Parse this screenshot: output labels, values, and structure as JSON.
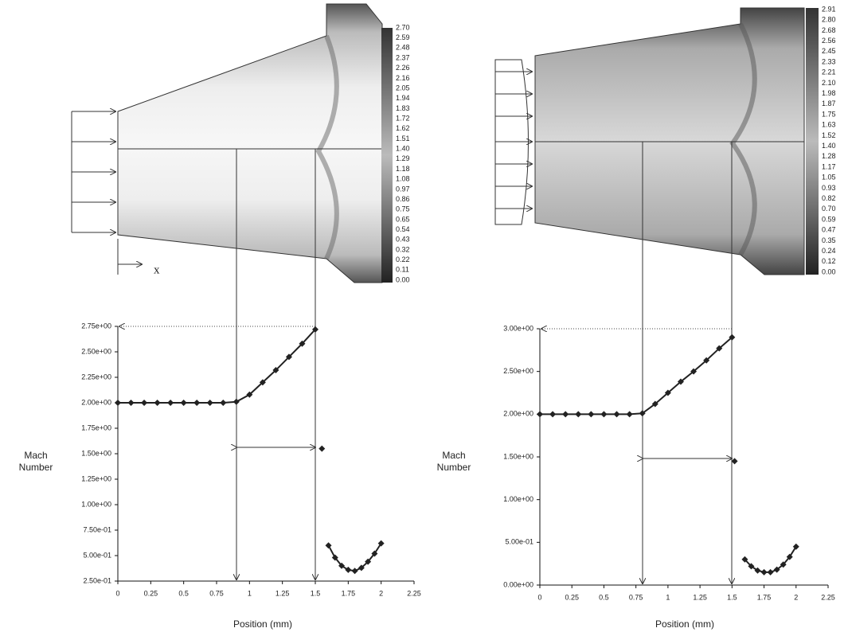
{
  "chart_data": [
    {
      "type": "line",
      "xlabel": "Position (mm)",
      "ylabel": "Mach Number",
      "xlim": [
        0,
        2.25
      ],
      "ylim": [
        0.25,
        2.75
      ],
      "xticks": [
        0,
        0.25,
        0.5,
        0.75,
        1,
        1.25,
        1.5,
        1.75,
        2,
        2.25
      ],
      "yticks": [
        {
          "value": 0.25,
          "label": "2.50e-01"
        },
        {
          "value": 0.5,
          "label": "5.00e-01"
        },
        {
          "value": 0.75,
          "label": "7.50e-01"
        },
        {
          "value": 1,
          "label": "1.00e+00"
        },
        {
          "value": 1.25,
          "label": "1.25e+00"
        },
        {
          "value": 1.5,
          "label": "1.50e+00"
        },
        {
          "value": 1.75,
          "label": "1.75e+00"
        },
        {
          "value": 2,
          "label": "2.00e+00"
        },
        {
          "value": 2.25,
          "label": "2.25e+00"
        },
        {
          "value": 2.5,
          "label": "2.50e+00"
        },
        {
          "value": 2.75,
          "label": "2.75e+00"
        }
      ],
      "series": [
        {
          "color": "#222",
          "x": [
            0,
            0.1,
            0.2,
            0.3,
            0.4,
            0.5,
            0.6,
            0.7,
            0.8,
            0.9,
            1.0,
            1.1,
            1.2,
            1.3,
            1.4,
            1.5
          ],
          "values": [
            2,
            2,
            2,
            2,
            2,
            2,
            2,
            2,
            2,
            2.01,
            2.08,
            2.2,
            2.32,
            2.45,
            2.58,
            2.72
          ]
        },
        {
          "color": "#222",
          "x": [
            1.55
          ],
          "values": [
            1.55
          ]
        },
        {
          "color": "#222",
          "x": [
            1.6,
            1.65,
            1.7,
            1.75,
            1.8,
            1.85,
            1.9,
            1.95,
            2.0
          ],
          "values": [
            0.6,
            0.48,
            0.4,
            0.36,
            0.35,
            0.38,
            0.44,
            0.52,
            0.62
          ]
        }
      ]
    },
    {
      "type": "line",
      "xlabel": "Position (mm)",
      "ylabel": "Mach Number",
      "xlim": [
        0,
        2.25
      ],
      "ylim": [
        0,
        3
      ],
      "xticks": [
        0,
        0.25,
        0.5,
        0.75,
        1,
        1.25,
        1.5,
        1.75,
        2,
        2.25
      ],
      "yticks": [
        {
          "value": 0,
          "label": "0.00e+00"
        },
        {
          "value": 0.5,
          "label": "5.00e-01"
        },
        {
          "value": 1,
          "label": "1.00e+00"
        },
        {
          "value": 1.5,
          "label": "1.50e+00"
        },
        {
          "value": 2,
          "label": "2.00e+00"
        },
        {
          "value": 2.5,
          "label": "2.50e+00"
        },
        {
          "value": 3,
          "label": "3.00e+00"
        }
      ],
      "series": [
        {
          "color": "#222",
          "x": [
            0,
            0.1,
            0.2,
            0.3,
            0.4,
            0.5,
            0.6,
            0.7,
            0.8,
            0.9,
            1.0,
            1.1,
            1.2,
            1.3,
            1.4,
            1.5
          ],
          "values": [
            2,
            2,
            2,
            2,
            2,
            2,
            2,
            2,
            2.01,
            2.12,
            2.25,
            2.38,
            2.5,
            2.63,
            2.77,
            2.9
          ]
        },
        {
          "color": "#222",
          "x": [
            1.52
          ],
          "values": [
            1.45
          ]
        },
        {
          "color": "#222",
          "x": [
            1.6,
            1.65,
            1.7,
            1.75,
            1.8,
            1.85,
            1.9,
            1.95,
            2.0
          ],
          "values": [
            0.3,
            0.22,
            0.17,
            0.15,
            0.15,
            0.18,
            0.24,
            0.33,
            0.45
          ]
        }
      ]
    }
  ],
  "contours": [
    {
      "axis_label": "x",
      "colorbar_labels": [
        "2.70",
        "2.59",
        "2.48",
        "2.37",
        "2.26",
        "2.16",
        "2.05",
        "1.94",
        "1.83",
        "1.72",
        "1.62",
        "1.51",
        "1.40",
        "1.29",
        "1.18",
        "1.08",
        "0.97",
        "0.86",
        "0.75",
        "0.65",
        "0.54",
        "0.43",
        "0.32",
        "0.22",
        "0.11",
        "0.00"
      ]
    },
    {
      "colorbar_labels": [
        "2.91",
        "2.80",
        "2.68",
        "2.56",
        "2.45",
        "2.33",
        "2.21",
        "2.10",
        "1.98",
        "1.87",
        "1.75",
        "1.63",
        "1.52",
        "1.40",
        "1.28",
        "1.17",
        "1.05",
        "0.93",
        "0.82",
        "0.70",
        "0.59",
        "0.47",
        "0.35",
        "0.24",
        "0.12",
        "0.00"
      ]
    }
  ]
}
